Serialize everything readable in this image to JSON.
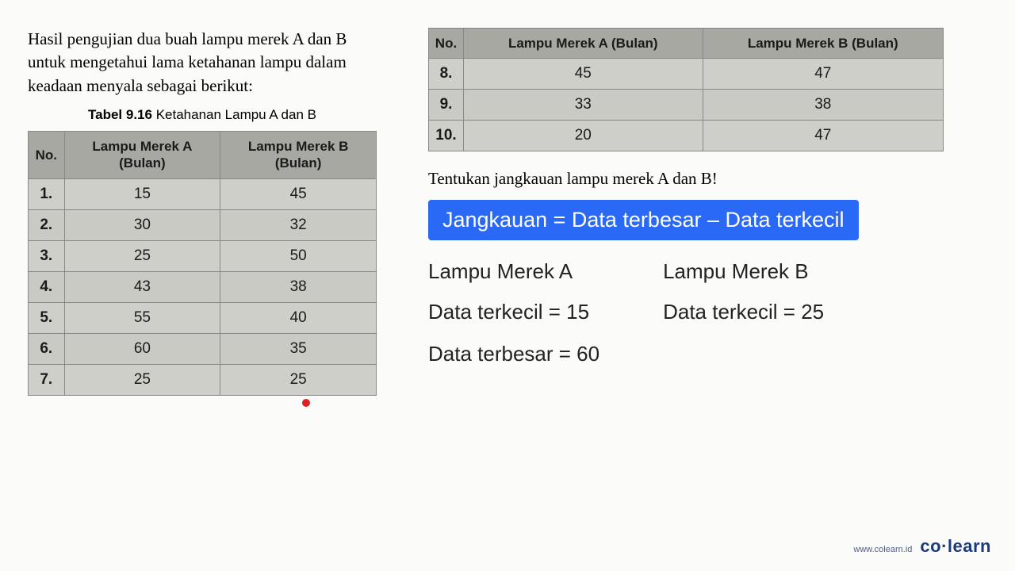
{
  "intro": "Hasil pengujian dua buah lampu merek A dan B untuk mengetahui lama ketahanan lampu dalam keadaan menyala sebagai berikut:",
  "caption_bold": "Tabel 9.16",
  "caption_rest": " Ketahanan Lampu A dan B",
  "headers": {
    "no": "No.",
    "a": "Lampu Merek A (Bulan)",
    "b": "Lampu Merek B (Bulan)"
  },
  "table1_rows": [
    {
      "no": "1.",
      "a": "15",
      "b": "45"
    },
    {
      "no": "2.",
      "a": "30",
      "b": "32"
    },
    {
      "no": "3.",
      "a": "25",
      "b": "50"
    },
    {
      "no": "4.",
      "a": "43",
      "b": "38"
    },
    {
      "no": "5.",
      "a": "55",
      "b": "40"
    },
    {
      "no": "6.",
      "a": "60",
      "b": "35"
    },
    {
      "no": "7.",
      "a": "25",
      "b": "25"
    }
  ],
  "table2_rows": [
    {
      "no": "8.",
      "a": "45",
      "b": "47"
    },
    {
      "no": "9.",
      "a": "33",
      "b": "38"
    },
    {
      "no": "10.",
      "a": "20",
      "b": "47"
    }
  ],
  "question": "Tentukan jangkauan lampu merek A dan B!",
  "formula": "Jangkauan = Data terbesar – Data terkecil",
  "work": {
    "a_heading": "Lampu Merek A",
    "a_min": "Data terkecil = 15",
    "a_max": "Data terbesar = 60",
    "b_heading": "Lampu Merek B",
    "b_min": "Data terkecil = 25"
  },
  "footer": {
    "url": "www.colearn.id",
    "logo_left": "co",
    "logo_right": "learn"
  },
  "colors": {
    "formula_bg": "#2a69f5",
    "dot": "#e02020",
    "table_header": "#a8a8a2",
    "table_cell": "#cfcfc9"
  }
}
